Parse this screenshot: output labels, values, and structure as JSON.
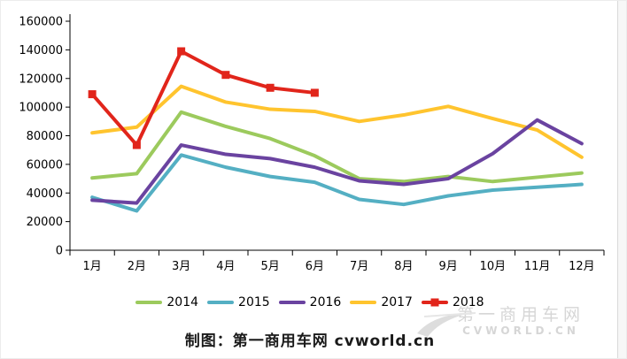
{
  "chart_data": {
    "type": "line",
    "title": "",
    "categories": [
      "1月",
      "2月",
      "3月",
      "4月",
      "5月",
      "6月",
      "7月",
      "8月",
      "9月",
      "10月",
      "11月",
      "12月"
    ],
    "series": [
      {
        "name": "2014",
        "color": "#9cca5d",
        "values": [
          50500,
          53500,
          96500,
          86500,
          78000,
          66000,
          50000,
          48000,
          51500,
          48000,
          51000,
          54000
        ]
      },
      {
        "name": "2015",
        "color": "#54afc3",
        "values": [
          37000,
          27500,
          66500,
          58000,
          51500,
          47500,
          35500,
          32000,
          38000,
          42000,
          44000,
          46000
        ]
      },
      {
        "name": "2017",
        "color": "#ffc42e",
        "values": [
          82000,
          86000,
          114500,
          103500,
          98500,
          97000,
          90000,
          94500,
          100500,
          92000,
          84000,
          65000
        ]
      },
      {
        "name": "2016",
        "color": "#6a43a0",
        "values": [
          35000,
          33000,
          73500,
          67000,
          64000,
          58000,
          48500,
          46000,
          50000,
          67500,
          91000,
          74500
        ]
      },
      {
        "name": "2018",
        "color": "#e1251b",
        "marker": "square",
        "values": [
          109000,
          73500,
          139000,
          122500,
          113500,
          110000
        ]
      }
    ],
    "legend_order": [
      "2014",
      "2015",
      "2016",
      "2017",
      "2018"
    ],
    "ylim": [
      0,
      160000
    ],
    "ytick_step": 20000,
    "y_tick_labels": [
      "0",
      "20000",
      "40000",
      "60000",
      "80000",
      "100000",
      "120000",
      "140000",
      "160000"
    ],
    "grid": false,
    "legend_position": "bottom"
  },
  "caption": {
    "text": "制图：第一商用车网 cvworld.cn"
  },
  "watermark": {
    "line1": "第一商用车网",
    "line2": "CVWORLD.CN"
  }
}
